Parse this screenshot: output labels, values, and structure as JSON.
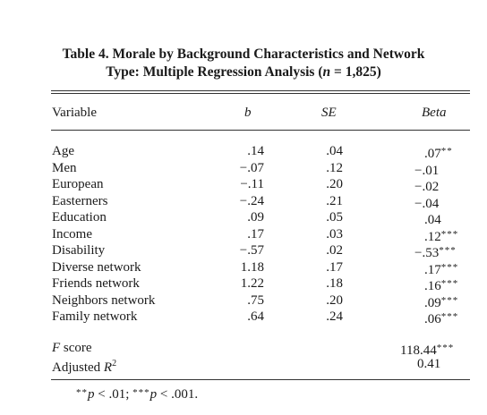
{
  "caption": {
    "line1": "Table 4. Morale by Background Characteristics and Network",
    "line2_prefix": "Type: Multiple Regression Analysis (",
    "line2_n": "n",
    "line2_suffix": " = 1,825)"
  },
  "headers": {
    "variable": "Variable",
    "b": "b",
    "se": "SE",
    "beta": "Beta"
  },
  "rows": [
    {
      "variable": "Age",
      "b": ".14",
      "se": ".04",
      "beta": ".07",
      "stars": "**"
    },
    {
      "variable": "Men",
      "b": "−.07",
      "se": ".12",
      "beta": "−.01",
      "stars": ""
    },
    {
      "variable": "European",
      "b": "−.11",
      "se": ".20",
      "beta": "−.02",
      "stars": ""
    },
    {
      "variable": "Easterners",
      "b": "−.24",
      "se": ".21",
      "beta": "−.04",
      "stars": ""
    },
    {
      "variable": "Education",
      "b": ".09",
      "se": ".05",
      "beta": ".04",
      "stars": ""
    },
    {
      "variable": "Income",
      "b": ".17",
      "se": ".03",
      "beta": ".12",
      "stars": "***"
    },
    {
      "variable": "Disability",
      "b": "−.57",
      "se": ".02",
      "beta": "−.53",
      "stars": "***"
    },
    {
      "variable": "Diverse network",
      "b": "1.18",
      "se": ".17",
      "beta": ".17",
      "stars": "***"
    },
    {
      "variable": "Friends network",
      "b": "1.22",
      "se": ".18",
      "beta": ".16",
      "stars": "***"
    },
    {
      "variable": "Neighbors network",
      "b": ".75",
      "se": ".20",
      "beta": ".09",
      "stars": "***"
    },
    {
      "variable": "Family network",
      "b": ".64",
      "se": ".24",
      "beta": ".06",
      "stars": "***"
    }
  ],
  "fscore": {
    "label": "F",
    "label_suffix": " score",
    "value": "118.44",
    "stars": "***"
  },
  "adjusted_r2": {
    "label": "Adjusted ",
    "symbol": "R",
    "exponent": "2",
    "value": "0.41"
  },
  "note": {
    "stars1": "**",
    "p1": "p",
    "text1": " < .01; ",
    "stars2": "***",
    "p2": "p",
    "text2": " < .001."
  }
}
